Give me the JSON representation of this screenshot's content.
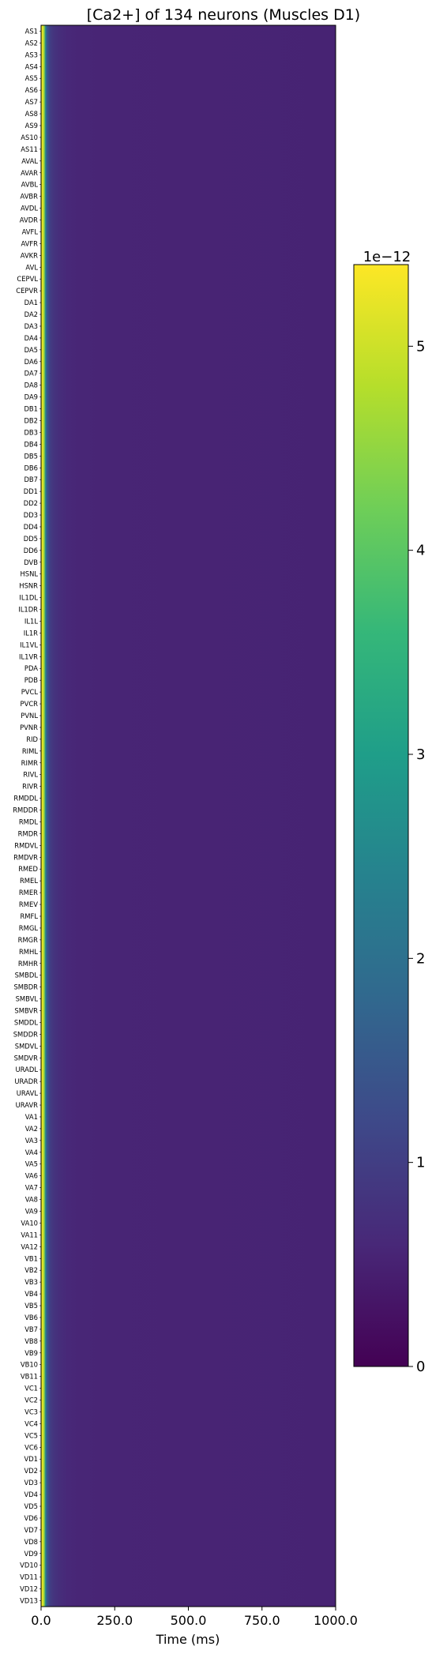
{
  "chart_data": {
    "type": "heatmap",
    "title": "[Ca2+] of 134 neurons (Muscles D1)",
    "xlabel": "Time (ms)",
    "ylabel": "",
    "xlim": [
      0,
      1000
    ],
    "x_ticks": [
      0.0,
      250.0,
      500.0,
      750.0,
      1000.0
    ],
    "x_tick_labels": [
      "0.0",
      "250.0",
      "500.0",
      "750.0",
      "1000.0"
    ],
    "colormap": "viridis",
    "colorbar": {
      "min": 0,
      "max": 5.4e-12,
      "ticks": [
        0,
        1,
        2,
        3,
        4,
        5
      ],
      "tick_labels": [
        "0",
        "1",
        "2",
        "3",
        "4",
        "5"
      ],
      "scale_label": "1e−12"
    },
    "profile_note_time_ms": [
      0,
      5,
      10,
      15,
      20,
      30,
      40,
      60,
      90,
      130,
      200,
      1000
    ],
    "profile_values": [
      5e-12,
      5.3e-12,
      4.6e-12,
      2.5e-12,
      1.5e-12,
      1e-12,
      8.5e-13,
      7e-13,
      6e-13,
      5.7e-13,
      5.5e-13,
      5.2e-13
    ],
    "neurons": [
      "AS1",
      "AS2",
      "AS3",
      "AS4",
      "AS5",
      "AS6",
      "AS7",
      "AS8",
      "AS9",
      "AS10",
      "AS11",
      "AVAL",
      "AVAR",
      "AVBL",
      "AVBR",
      "AVDL",
      "AVDR",
      "AVFL",
      "AVFR",
      "AVKR",
      "AVL",
      "CEPVL",
      "CEPVR",
      "DA1",
      "DA2",
      "DA3",
      "DA4",
      "DA5",
      "DA6",
      "DA7",
      "DA8",
      "DA9",
      "DB1",
      "DB2",
      "DB3",
      "DB4",
      "DB5",
      "DB6",
      "DB7",
      "DD1",
      "DD2",
      "DD3",
      "DD4",
      "DD5",
      "DD6",
      "DVB",
      "HSNL",
      "HSNR",
      "IL1DL",
      "IL1DR",
      "IL1L",
      "IL1R",
      "IL1VL",
      "IL1VR",
      "PDA",
      "PDB",
      "PVCL",
      "PVCR",
      "PVNL",
      "PVNR",
      "RID",
      "RIML",
      "RIMR",
      "RIVL",
      "RIVR",
      "RMDDL",
      "RMDDR",
      "RMDL",
      "RMDR",
      "RMDVL",
      "RMDVR",
      "RMED",
      "RMEL",
      "RMER",
      "RMEV",
      "RMFL",
      "RMGL",
      "RMGR",
      "RMHL",
      "RMHR",
      "SMBDL",
      "SMBDR",
      "SMBVL",
      "SMBVR",
      "SMDDL",
      "SMDDR",
      "SMDVL",
      "SMDVR",
      "URADL",
      "URADR",
      "URAVL",
      "URAVR",
      "VA1",
      "VA2",
      "VA3",
      "VA4",
      "VA5",
      "VA6",
      "VA7",
      "VA8",
      "VA9",
      "VA10",
      "VA11",
      "VA12",
      "VB1",
      "VB2",
      "VB3",
      "VB4",
      "VB5",
      "VB6",
      "VB7",
      "VB8",
      "VB9",
      "VB10",
      "VB11",
      "VC1",
      "VC2",
      "VC3",
      "VC4",
      "VC5",
      "VC6",
      "VD1",
      "VD2",
      "VD3",
      "VD4",
      "VD5",
      "VD6",
      "VD7",
      "VD8",
      "VD9",
      "VD10",
      "VD11",
      "VD12",
      "VD13"
    ]
  }
}
